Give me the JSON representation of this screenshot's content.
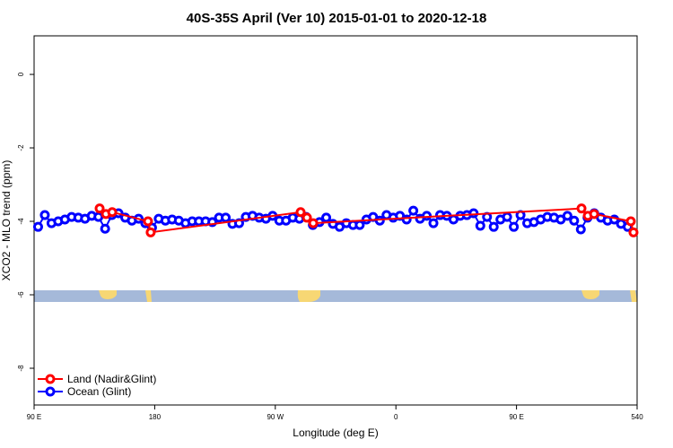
{
  "chart_data": {
    "type": "line",
    "title": "40S-35S April (Ver 10)   2015-01-01 to 2020-12-18",
    "x_label": "Longitude (deg E)",
    "y_label": "XCO2 - MLO trend (ppm)",
    "xlim": [
      90,
      540
    ],
    "ylim": [
      -9,
      1.05
    ],
    "xticks": [
      {
        "value": 90,
        "label": "90 E"
      },
      180,
      {
        "value": 270,
        "label": "90 W"
      },
      {
        "value": 360,
        "label": "0"
      },
      {
        "value": 450,
        "label": "90 E"
      },
      540
    ],
    "yticks": [
      0,
      -2,
      -4,
      -6,
      -8
    ],
    "legend": "bottom-left",
    "series": [
      {
        "name": "Land (Nadir&Glint)",
        "color": "#ff0000",
        "x": [
          138.9,
          143.6,
          148.3,
          175,
          177,
          288.9,
          293.6,
          298.3,
          498.5,
          503.2,
          507.9,
          535.3,
          537.3
        ],
        "values": [
          -3.65,
          -3.8,
          -3.75,
          -4.0,
          -4.3,
          -3.75,
          -3.9,
          -4.05,
          -3.65,
          -3.85,
          -3.8,
          -4.0,
          -4.3
        ]
      },
      {
        "name": "Ocean (Glint)",
        "color": "#0000ff",
        "x": [
          93,
          98,
          103,
          108,
          113,
          118,
          123,
          128,
          133,
          138,
          143,
          148,
          153,
          158,
          163,
          168,
          173,
          178,
          183,
          188,
          193,
          198,
          203,
          208,
          213,
          218,
          223,
          228,
          233,
          238,
          243,
          248,
          253,
          258,
          263,
          268,
          273,
          278,
          283,
          288,
          293,
          298,
          303,
          308,
          313,
          318,
          323,
          328,
          333,
          338,
          343,
          348,
          353,
          358,
          363,
          368,
          373,
          378,
          383,
          388,
          393,
          398,
          403,
          408,
          413,
          418,
          423,
          428,
          433,
          438,
          443,
          448,
          453,
          458,
          463,
          468,
          473,
          478,
          483,
          488,
          493,
          498,
          503,
          508,
          513,
          518,
          523,
          528,
          533
        ],
        "values": [
          -4.15,
          -3.83,
          -4.05,
          -4.0,
          -3.95,
          -3.88,
          -3.9,
          -3.93,
          -3.85,
          -3.88,
          -4.2,
          -3.83,
          -3.78,
          -3.9,
          -3.98,
          -3.93,
          -4.05,
          -4.17,
          -3.93,
          -3.98,
          -3.95,
          -3.98,
          -4.05,
          -4.0,
          -4.0,
          -4.0,
          -4.02,
          -3.9,
          -3.9,
          -4.07,
          -4.05,
          -3.88,
          -3.85,
          -3.9,
          -3.93,
          -3.85,
          -3.98,
          -3.98,
          -3.9,
          -3.93,
          -3.88,
          -4.1,
          -4.02,
          -3.9,
          -4.07,
          -4.15,
          -4.05,
          -4.1,
          -4.1,
          -3.95,
          -3.88,
          -3.98,
          -3.83,
          -3.9,
          -3.85,
          -3.95,
          -3.71,
          -3.93,
          -3.85,
          -4.05,
          -3.83,
          -3.85,
          -3.95,
          -3.85,
          -3.83,
          -3.78,
          -4.12,
          -3.88,
          -4.15,
          -3.95,
          -3.88,
          -4.15,
          -3.83,
          -4.05,
          -4.02,
          -3.95,
          -3.88,
          -3.9,
          -3.95,
          -3.85,
          -3.98,
          -4.22,
          -3.9,
          -3.78,
          -3.9,
          -3.98,
          -3.95,
          -4.07,
          -4.15
        ]
      }
    ]
  }
}
